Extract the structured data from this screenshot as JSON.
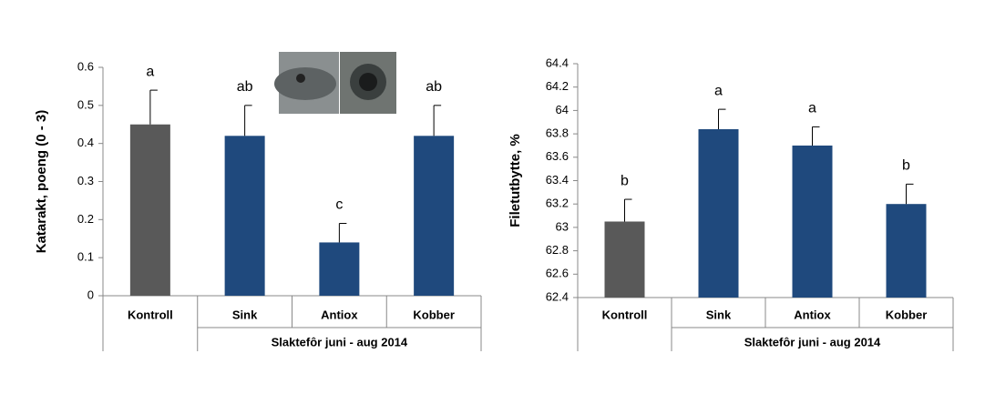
{
  "chart_data": [
    {
      "type": "bar",
      "ylabel": "Katarakt, poeng (0 - 3)",
      "categories": [
        "Kontroll",
        "Sink",
        "Antiox",
        "Kobber"
      ],
      "values": [
        0.45,
        0.42,
        0.14,
        0.42
      ],
      "errors": [
        0.09,
        0.08,
        0.05,
        0.08
      ],
      "letters": [
        "a",
        "ab",
        "c",
        "ab"
      ],
      "colors": [
        "#595959",
        "#1f497d",
        "#1f497d",
        "#1f497d"
      ],
      "group_label": "Slaktefôr juni - aug 2014",
      "ylim": [
        0,
        0.6
      ],
      "yticks": [
        0,
        0.1,
        0.2,
        0.3,
        0.4,
        0.5,
        0.6
      ]
    },
    {
      "type": "bar",
      "ylabel": "Filetutbytte, %",
      "categories": [
        "Kontroll",
        "Sink",
        "Antiox",
        "Kobber"
      ],
      "values": [
        63.05,
        63.84,
        63.7,
        63.2
      ],
      "errors": [
        0.19,
        0.17,
        0.16,
        0.17
      ],
      "letters": [
        "b",
        "a",
        "a",
        "b"
      ],
      "colors": [
        "#595959",
        "#1f497d",
        "#1f497d",
        "#1f497d"
      ],
      "group_label": "Slaktefôr juni - aug 2014",
      "ylim": [
        62.4,
        64.4
      ],
      "yticks": [
        62.4,
        62.6,
        62.8,
        63,
        63.2,
        63.4,
        63.6,
        63.8,
        64,
        64.2,
        64.4
      ]
    }
  ]
}
